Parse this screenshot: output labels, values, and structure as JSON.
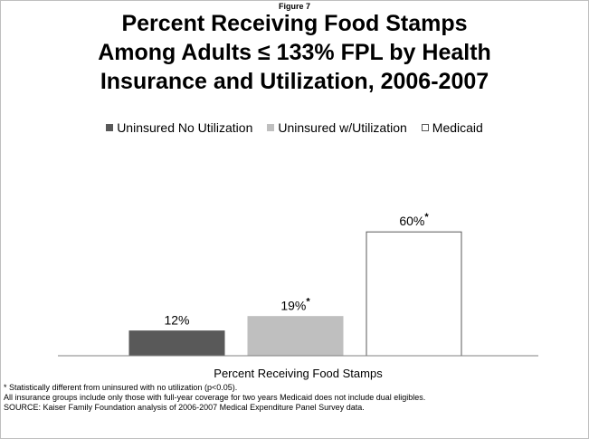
{
  "figure_label": "Figure 7",
  "title_lines": [
    "Percent Receiving Food Stamps",
    "Among Adults ≤ 133% FPL by Health",
    "Insurance and Utilization, 2006-2007"
  ],
  "chart_data": {
    "type": "bar",
    "title": "Percent Receiving Food Stamps Among Adults ≤ 133% FPL by Health Insurance and Utilization, 2006-2007",
    "xlabel": "Percent Receiving Food Stamps",
    "ylabel": "",
    "ylim": [
      0,
      100
    ],
    "grid": false,
    "legend": "top",
    "categories": [
      "Percent Receiving Food Stamps"
    ],
    "series": [
      {
        "name": "Uninsured No Utilization",
        "values": [
          12
        ],
        "label": "12%",
        "significant": false,
        "color": "#595959"
      },
      {
        "name": "Uninsured w/Utilization",
        "values": [
          19
        ],
        "label": "19%",
        "significant": true,
        "color": "#bfbfbf"
      },
      {
        "name": "Medicaid",
        "values": [
          60
        ],
        "label": "60%",
        "significant": true,
        "color": "#ffffff"
      }
    ],
    "significance_marker": "*"
  },
  "notes": [
    "* Statistically different from uninsured with no utilization (p<0.05).",
    "All insurance groups include only those with full-year coverage for two years Medicaid does not include dual eligibles.",
    "SOURCE: Kaiser Family Foundation analysis of 2006-2007 Medical Expenditure Panel Survey data."
  ]
}
